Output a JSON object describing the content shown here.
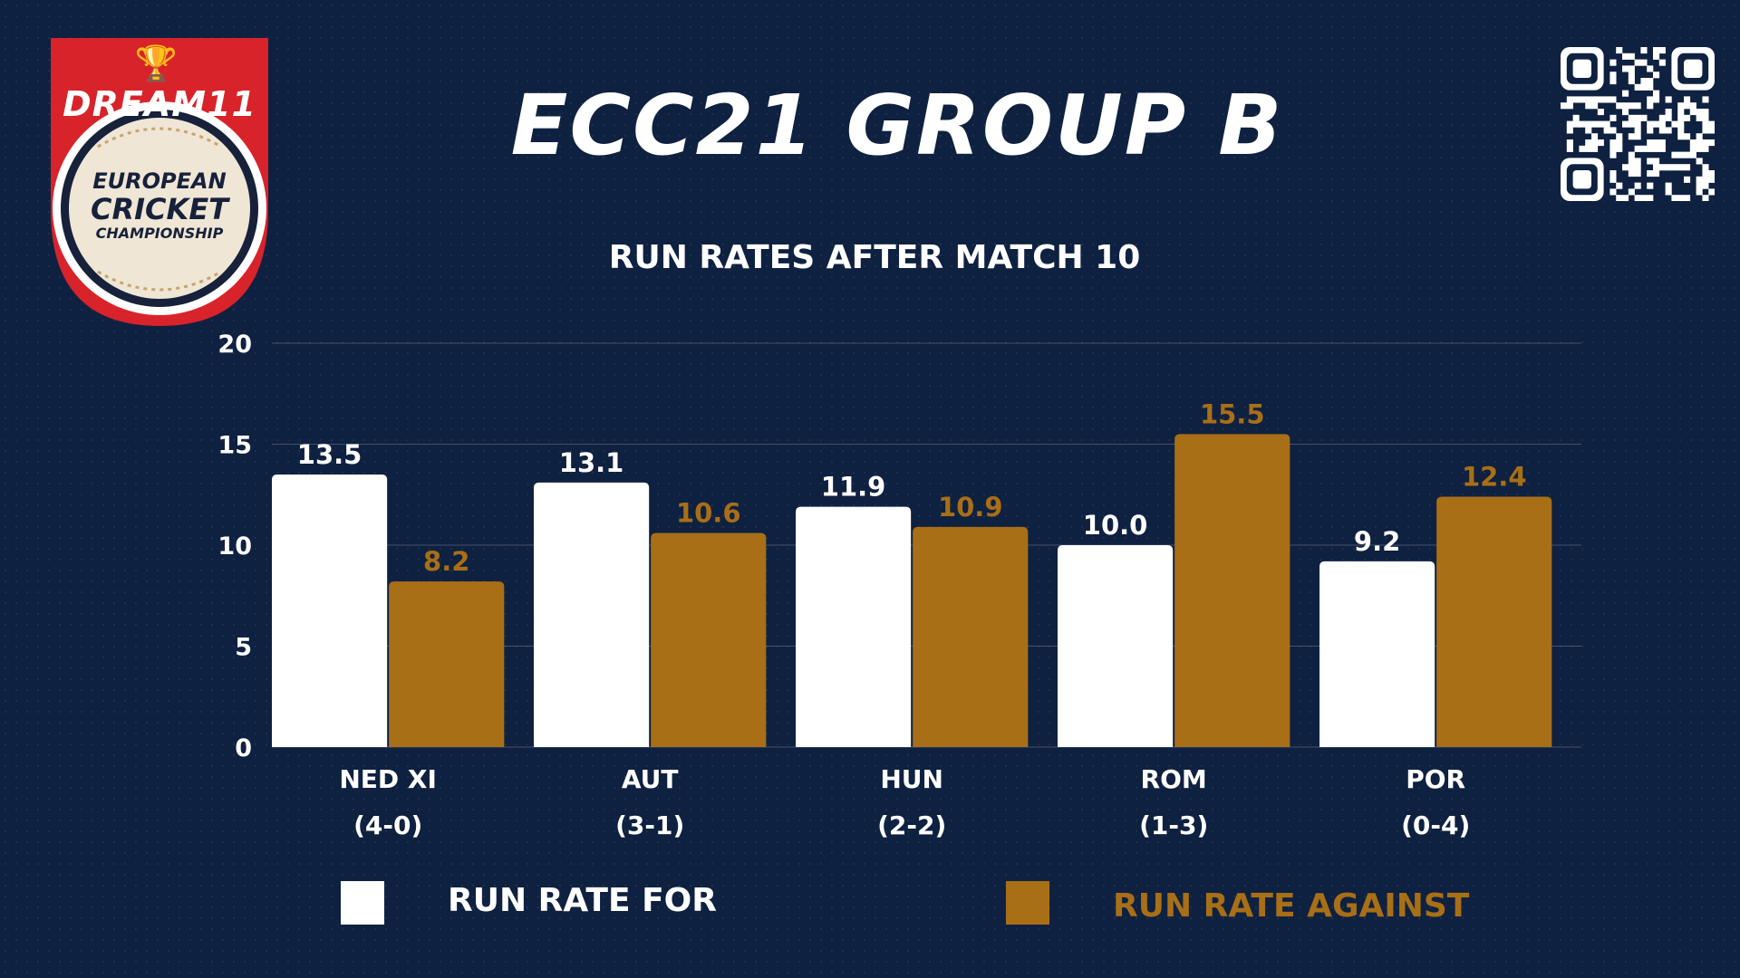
{
  "logo": {
    "brand": "DREAM11",
    "line1": "EUROPEAN",
    "line2": "CRICKET",
    "line3": "CHAMPIONSHIP"
  },
  "icons": {
    "logo": "dream11-european-cricket-championship-logo",
    "qr": "qr-code-icon"
  },
  "colors": {
    "background": "#0f2140",
    "run_rate_for": "#ffffff",
    "run_rate_against": "#a86f17",
    "logo_red": "#d8232a",
    "logo_cream": "#efe6d6"
  },
  "chart_data": {
    "type": "bar",
    "title": "ECC21 GROUP B",
    "subtitle": "RUN RATES AFTER MATCH 10",
    "categories": [
      "NED XI",
      "AUT",
      "HUN",
      "ROM",
      "POR"
    ],
    "records": [
      "(4-0)",
      "(3-1)",
      "(2-2)",
      "(1-3)",
      "(0-4)"
    ],
    "series": [
      {
        "name": "RUN RATE FOR",
        "values": [
          13.5,
          13.1,
          11.9,
          10.0,
          9.2
        ],
        "labels": [
          "13.5",
          "13.1",
          "11.9",
          "10.0",
          "9.2"
        ]
      },
      {
        "name": "RUN RATE AGAINST",
        "values": [
          8.2,
          10.6,
          10.9,
          15.5,
          12.4
        ],
        "labels": [
          "8.2",
          "10.6",
          "10.9",
          "15.5",
          "12.4"
        ]
      }
    ],
    "yticks": [
      0,
      5,
      10,
      15,
      20
    ],
    "ylim": [
      0,
      20
    ],
    "grid": true,
    "legend_position": "bottom"
  }
}
